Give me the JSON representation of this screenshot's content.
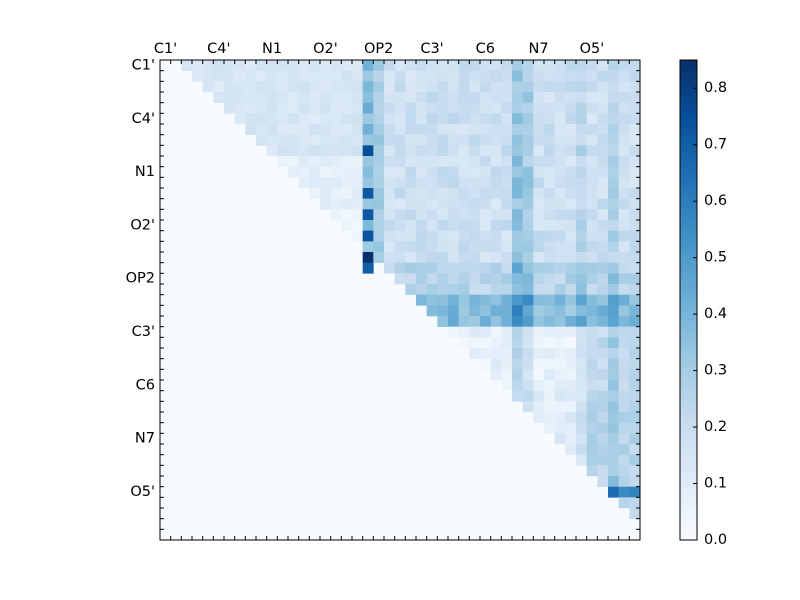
{
  "chart_data": {
    "type": "heatmap",
    "title": "",
    "xlabel": "",
    "ylabel": "",
    "x_tick_labels": [
      "C1'",
      "C4'",
      "N1",
      "O2'",
      "OP2",
      "C3'",
      "C6",
      "N7",
      "O5'"
    ],
    "y_tick_labels": [
      "C1'",
      "C4'",
      "N1",
      "O2'",
      "OP2",
      "C3'",
      "C6",
      "N7",
      "O5'"
    ],
    "grid_size": 45,
    "upper_triangular": true,
    "colormap": "Blues",
    "colorbar": {
      "min": 0.0,
      "max": 0.85,
      "ticks": [
        "0.0",
        "0.1",
        "0.2",
        "0.3",
        "0.4",
        "0.5",
        "0.6",
        "0.7",
        "0.8"
      ]
    },
    "strong_cells": [
      {
        "row": 18,
        "col": 19,
        "value": 0.85
      },
      {
        "row": 14,
        "col": 19,
        "value": 0.72
      },
      {
        "row": 16,
        "col": 19,
        "value": 0.74
      },
      {
        "row": 12,
        "col": 19,
        "value": 0.72
      },
      {
        "row": 8,
        "col": 19,
        "value": 0.75
      },
      {
        "row": 19,
        "col": 19,
        "value": 0.7
      },
      {
        "row": 40,
        "col": 42,
        "value": 0.65
      },
      {
        "row": 40,
        "col": 43,
        "value": 0.55
      },
      {
        "row": 40,
        "col": 44,
        "value": 0.58
      }
    ]
  },
  "colors": {
    "cmap_stops": [
      "#f7fbff",
      "#deebf7",
      "#c6dbef",
      "#9ecae1",
      "#6baed6",
      "#4292c6",
      "#2171b5",
      "#08519c",
      "#08306b"
    ]
  }
}
